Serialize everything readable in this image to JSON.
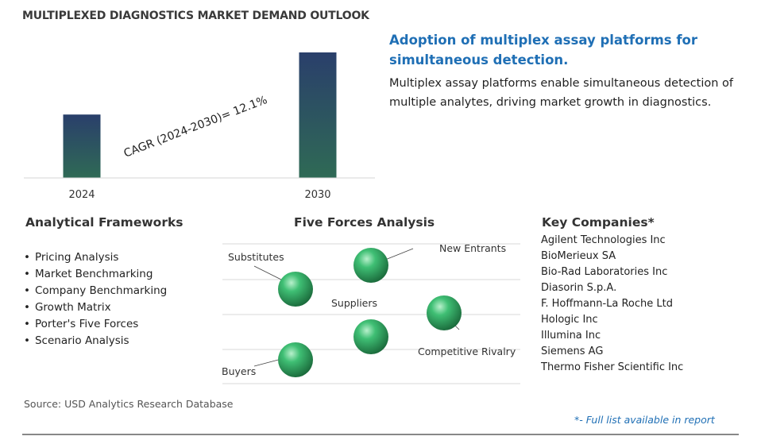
{
  "title": "MULTIPLEXED DIAGNOSTICS MARKET DEMAND OUTLOOK",
  "chart_data": {
    "type": "bar",
    "categories": [
      "2024",
      "2030"
    ],
    "values": [
      1.0,
      1.98
    ],
    "annotation": "CAGR (2024-2030)=  12.1%",
    "bar_gradient": [
      "#2f6a55",
      "#2a3f6b"
    ]
  },
  "headline": "Adoption of multiplex assay platforms for simultaneous detection.",
  "description": "Multiplex assay platforms enable simultaneous detection of multiple analytes, driving market growth in diagnostics.",
  "frameworks": {
    "title": "Analytical Frameworks",
    "items": [
      "Pricing Analysis",
      "Market Benchmarking",
      "Company Benchmarking",
      "Growth Matrix",
      "Porter's Five Forces",
      "Scenario Analysis"
    ]
  },
  "five_forces": {
    "title": "Five Forces Analysis",
    "labels": [
      "Substitutes",
      "New Entrants",
      "Suppliers",
      "Competitive Rivalry",
      "Buyers"
    ]
  },
  "companies": {
    "title": "Key Companies*",
    "items": [
      "Agilent Technologies Inc",
      "BioMerieux SA",
      "Bio-Rad Laboratories Inc",
      "Diasorin S.p.A.",
      "F. Hoffmann-La Roche Ltd",
      "Hologic Inc",
      "Illumina Inc",
      "Siemens AG",
      "Thermo Fisher Scientific Inc"
    ]
  },
  "source": "Source: USD Analytics Research Database",
  "footnote": "*- Full list available in report",
  "colors": {
    "accent": "#1f6fb5",
    "sphere": "#2e9e5e"
  }
}
